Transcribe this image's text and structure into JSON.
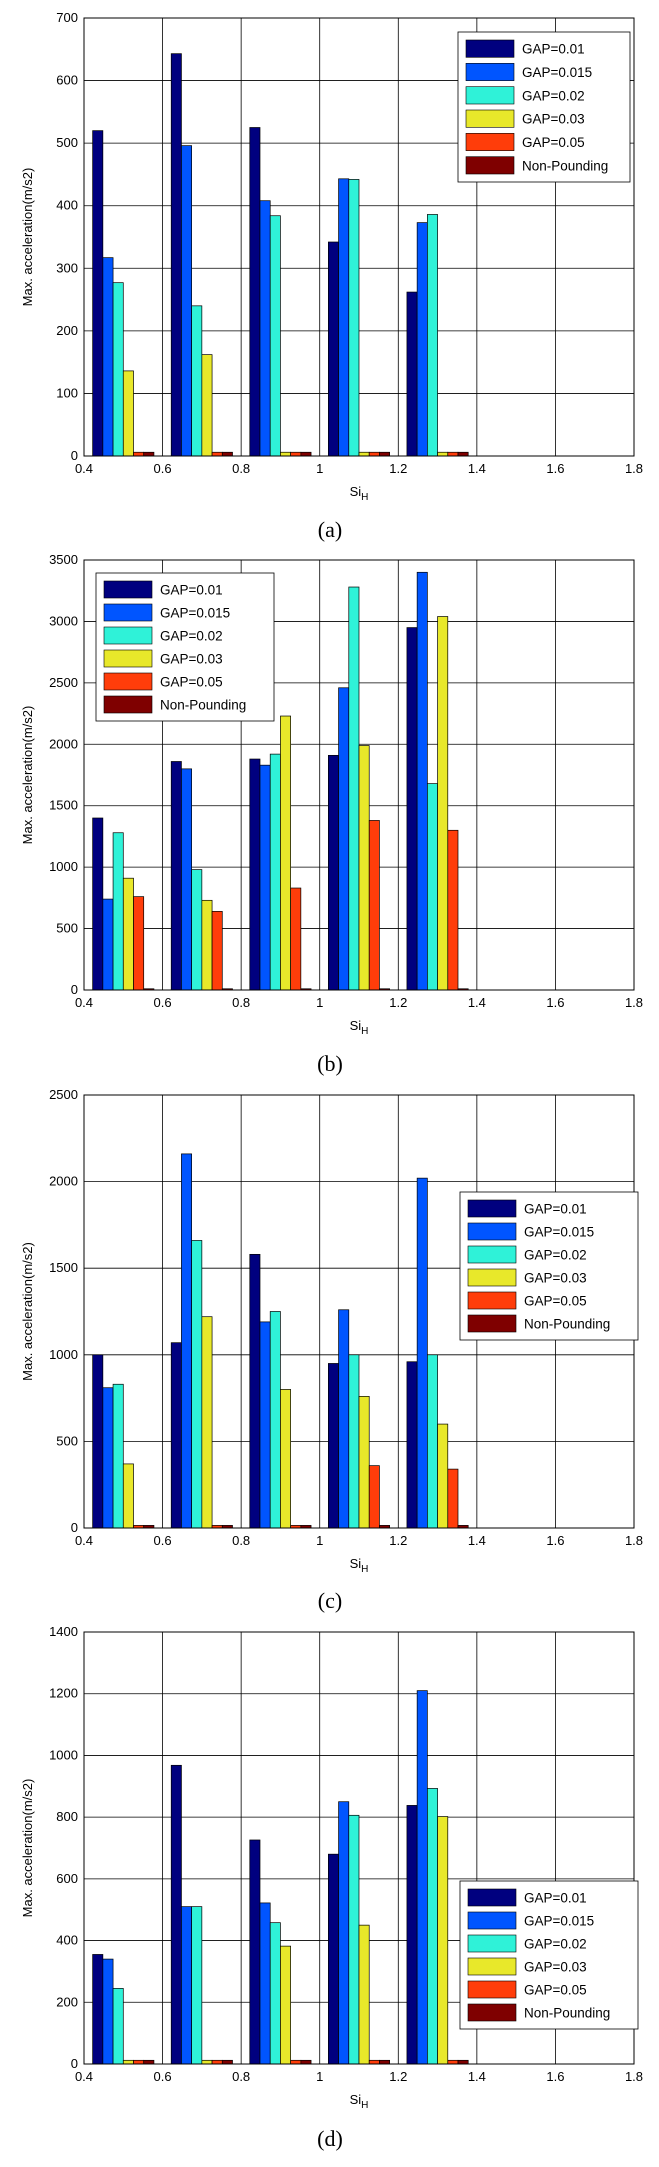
{
  "colors": {
    "series": [
      "#00007f",
      "#0055ff",
      "#2ff2d8",
      "#e8e82a",
      "#ff3d0a",
      "#7f0000"
    ],
    "grid": "#000000",
    "background": "#ffffff"
  },
  "chart_data": [
    {
      "type": "bar",
      "caption": "(a)",
      "xlabel": "Si",
      "xlabel_sub": "H",
      "ylabel": "Max. acceleration(m/s2)",
      "categories": [
        0.5,
        0.7,
        0.9,
        1.1,
        1.3,
        1.5,
        1.7
      ],
      "xlim": [
        0.4,
        1.8
      ],
      "xticks": [
        "0.4",
        "0.6",
        "0.8",
        "1",
        "1.2",
        "1.4",
        "1.6",
        "1.8"
      ],
      "ylim": [
        0,
        700
      ],
      "yticks": [
        "0",
        "100",
        "200",
        "300",
        "400",
        "500",
        "600",
        "700"
      ],
      "grid": true,
      "legend_position": "top-right",
      "series": [
        {
          "name": "GAP=0.01",
          "values": [
            520,
            643,
            525,
            342,
            262,
            0,
            0
          ]
        },
        {
          "name": "GAP=0.015",
          "values": [
            317,
            496,
            408,
            443,
            373,
            0,
            0
          ]
        },
        {
          "name": "GAP=0.02",
          "values": [
            277,
            240,
            384,
            442,
            386,
            0,
            0
          ]
        },
        {
          "name": "GAP=0.03",
          "values": [
            136,
            162,
            6,
            6,
            6,
            0,
            0
          ]
        },
        {
          "name": "GAP=0.05",
          "values": [
            6,
            6,
            6,
            6,
            6,
            0,
            0
          ]
        },
        {
          "name": "Non-Pounding",
          "values": [
            6,
            6,
            6,
            6,
            6,
            0,
            0
          ]
        }
      ]
    },
    {
      "type": "bar",
      "caption": "(b)",
      "xlabel": "Si",
      "xlabel_sub": "H",
      "ylabel": "Max. acceleration(m/s2)",
      "categories": [
        0.5,
        0.7,
        0.9,
        1.1,
        1.3,
        1.5,
        1.7
      ],
      "xlim": [
        0.4,
        1.8
      ],
      "xticks": [
        "0.4",
        "0.6",
        "0.8",
        "1",
        "1.2",
        "1.4",
        "1.6",
        "1.8"
      ],
      "ylim": [
        0,
        3500
      ],
      "yticks": [
        "0",
        "500",
        "1000",
        "1500",
        "2000",
        "2500",
        "3000",
        "3500"
      ],
      "grid": true,
      "legend_position": "top-left",
      "series": [
        {
          "name": "GAP=0.01",
          "values": [
            1400,
            1860,
            1880,
            1910,
            2950,
            0,
            0
          ]
        },
        {
          "name": "GAP=0.015",
          "values": [
            740,
            1800,
            1830,
            2460,
            3400,
            0,
            0
          ]
        },
        {
          "name": "GAP=0.02",
          "values": [
            1280,
            980,
            1920,
            3280,
            1680,
            0,
            0
          ]
        },
        {
          "name": "GAP=0.03",
          "values": [
            910,
            730,
            2230,
            1990,
            3040,
            0,
            0
          ]
        },
        {
          "name": "GAP=0.05",
          "values": [
            760,
            640,
            830,
            1380,
            1300,
            0,
            0
          ]
        },
        {
          "name": "Non-Pounding",
          "values": [
            10,
            10,
            10,
            10,
            10,
            0,
            0
          ]
        }
      ]
    },
    {
      "type": "bar",
      "caption": "(c)",
      "xlabel": "Si",
      "xlabel_sub": "H",
      "ylabel": "Max. acceleration(m/s2)",
      "categories": [
        0.5,
        0.7,
        0.9,
        1.1,
        1.3,
        1.5,
        1.7
      ],
      "xlim": [
        0.4,
        1.8
      ],
      "xticks": [
        "0.4",
        "0.6",
        "0.8",
        "1",
        "1.2",
        "1.4",
        "1.6",
        "1.8"
      ],
      "ylim": [
        0,
        2500
      ],
      "yticks": [
        "0",
        "500",
        "1000",
        "1500",
        "2000",
        "2500"
      ],
      "grid": true,
      "legend_position": "middle-right",
      "series": [
        {
          "name": "GAP=0.01",
          "values": [
            1000,
            1070,
            1580,
            950,
            960,
            0,
            0
          ]
        },
        {
          "name": "GAP=0.015",
          "values": [
            810,
            2160,
            1190,
            1260,
            2020,
            0,
            0
          ]
        },
        {
          "name": "GAP=0.02",
          "values": [
            830,
            1660,
            1250,
            1000,
            1000,
            0,
            0
          ]
        },
        {
          "name": "GAP=0.03",
          "values": [
            370,
            1220,
            800,
            760,
            600,
            0,
            0
          ]
        },
        {
          "name": "GAP=0.05",
          "values": [
            15,
            15,
            15,
            360,
            340,
            0,
            0
          ]
        },
        {
          "name": "Non-Pounding",
          "values": [
            15,
            15,
            15,
            15,
            15,
            0,
            0
          ]
        }
      ]
    },
    {
      "type": "bar",
      "caption": "(d)",
      "xlabel": "Si",
      "xlabel_sub": "H",
      "ylabel": "Max. acceleration(m/s2)",
      "categories": [
        0.5,
        0.7,
        0.9,
        1.1,
        1.3,
        1.5,
        1.7
      ],
      "xlim": [
        0.4,
        1.8
      ],
      "xticks": [
        "0.4",
        "0.6",
        "0.8",
        "1",
        "1.2",
        "1.4",
        "1.6",
        "1.8"
      ],
      "ylim": [
        0,
        1400
      ],
      "yticks": [
        "0",
        "200",
        "400",
        "600",
        "800",
        "1000",
        "1200",
        "1400"
      ],
      "grid": true,
      "legend_position": "bottom-right",
      "series": [
        {
          "name": "GAP=0.01",
          "values": [
            355,
            968,
            726,
            680,
            838,
            0,
            0
          ]
        },
        {
          "name": "GAP=0.015",
          "values": [
            340,
            510,
            522,
            850,
            1210,
            0,
            0
          ]
        },
        {
          "name": "GAP=0.02",
          "values": [
            245,
            510,
            458,
            806,
            893,
            0,
            0
          ]
        },
        {
          "name": "GAP=0.03",
          "values": [
            12,
            12,
            382,
            450,
            802,
            0,
            0
          ]
        },
        {
          "name": "GAP=0.05",
          "values": [
            12,
            12,
            12,
            12,
            12,
            0,
            0
          ]
        },
        {
          "name": "Non-Pounding",
          "values": [
            12,
            12,
            12,
            12,
            12,
            0,
            0
          ]
        }
      ]
    }
  ]
}
